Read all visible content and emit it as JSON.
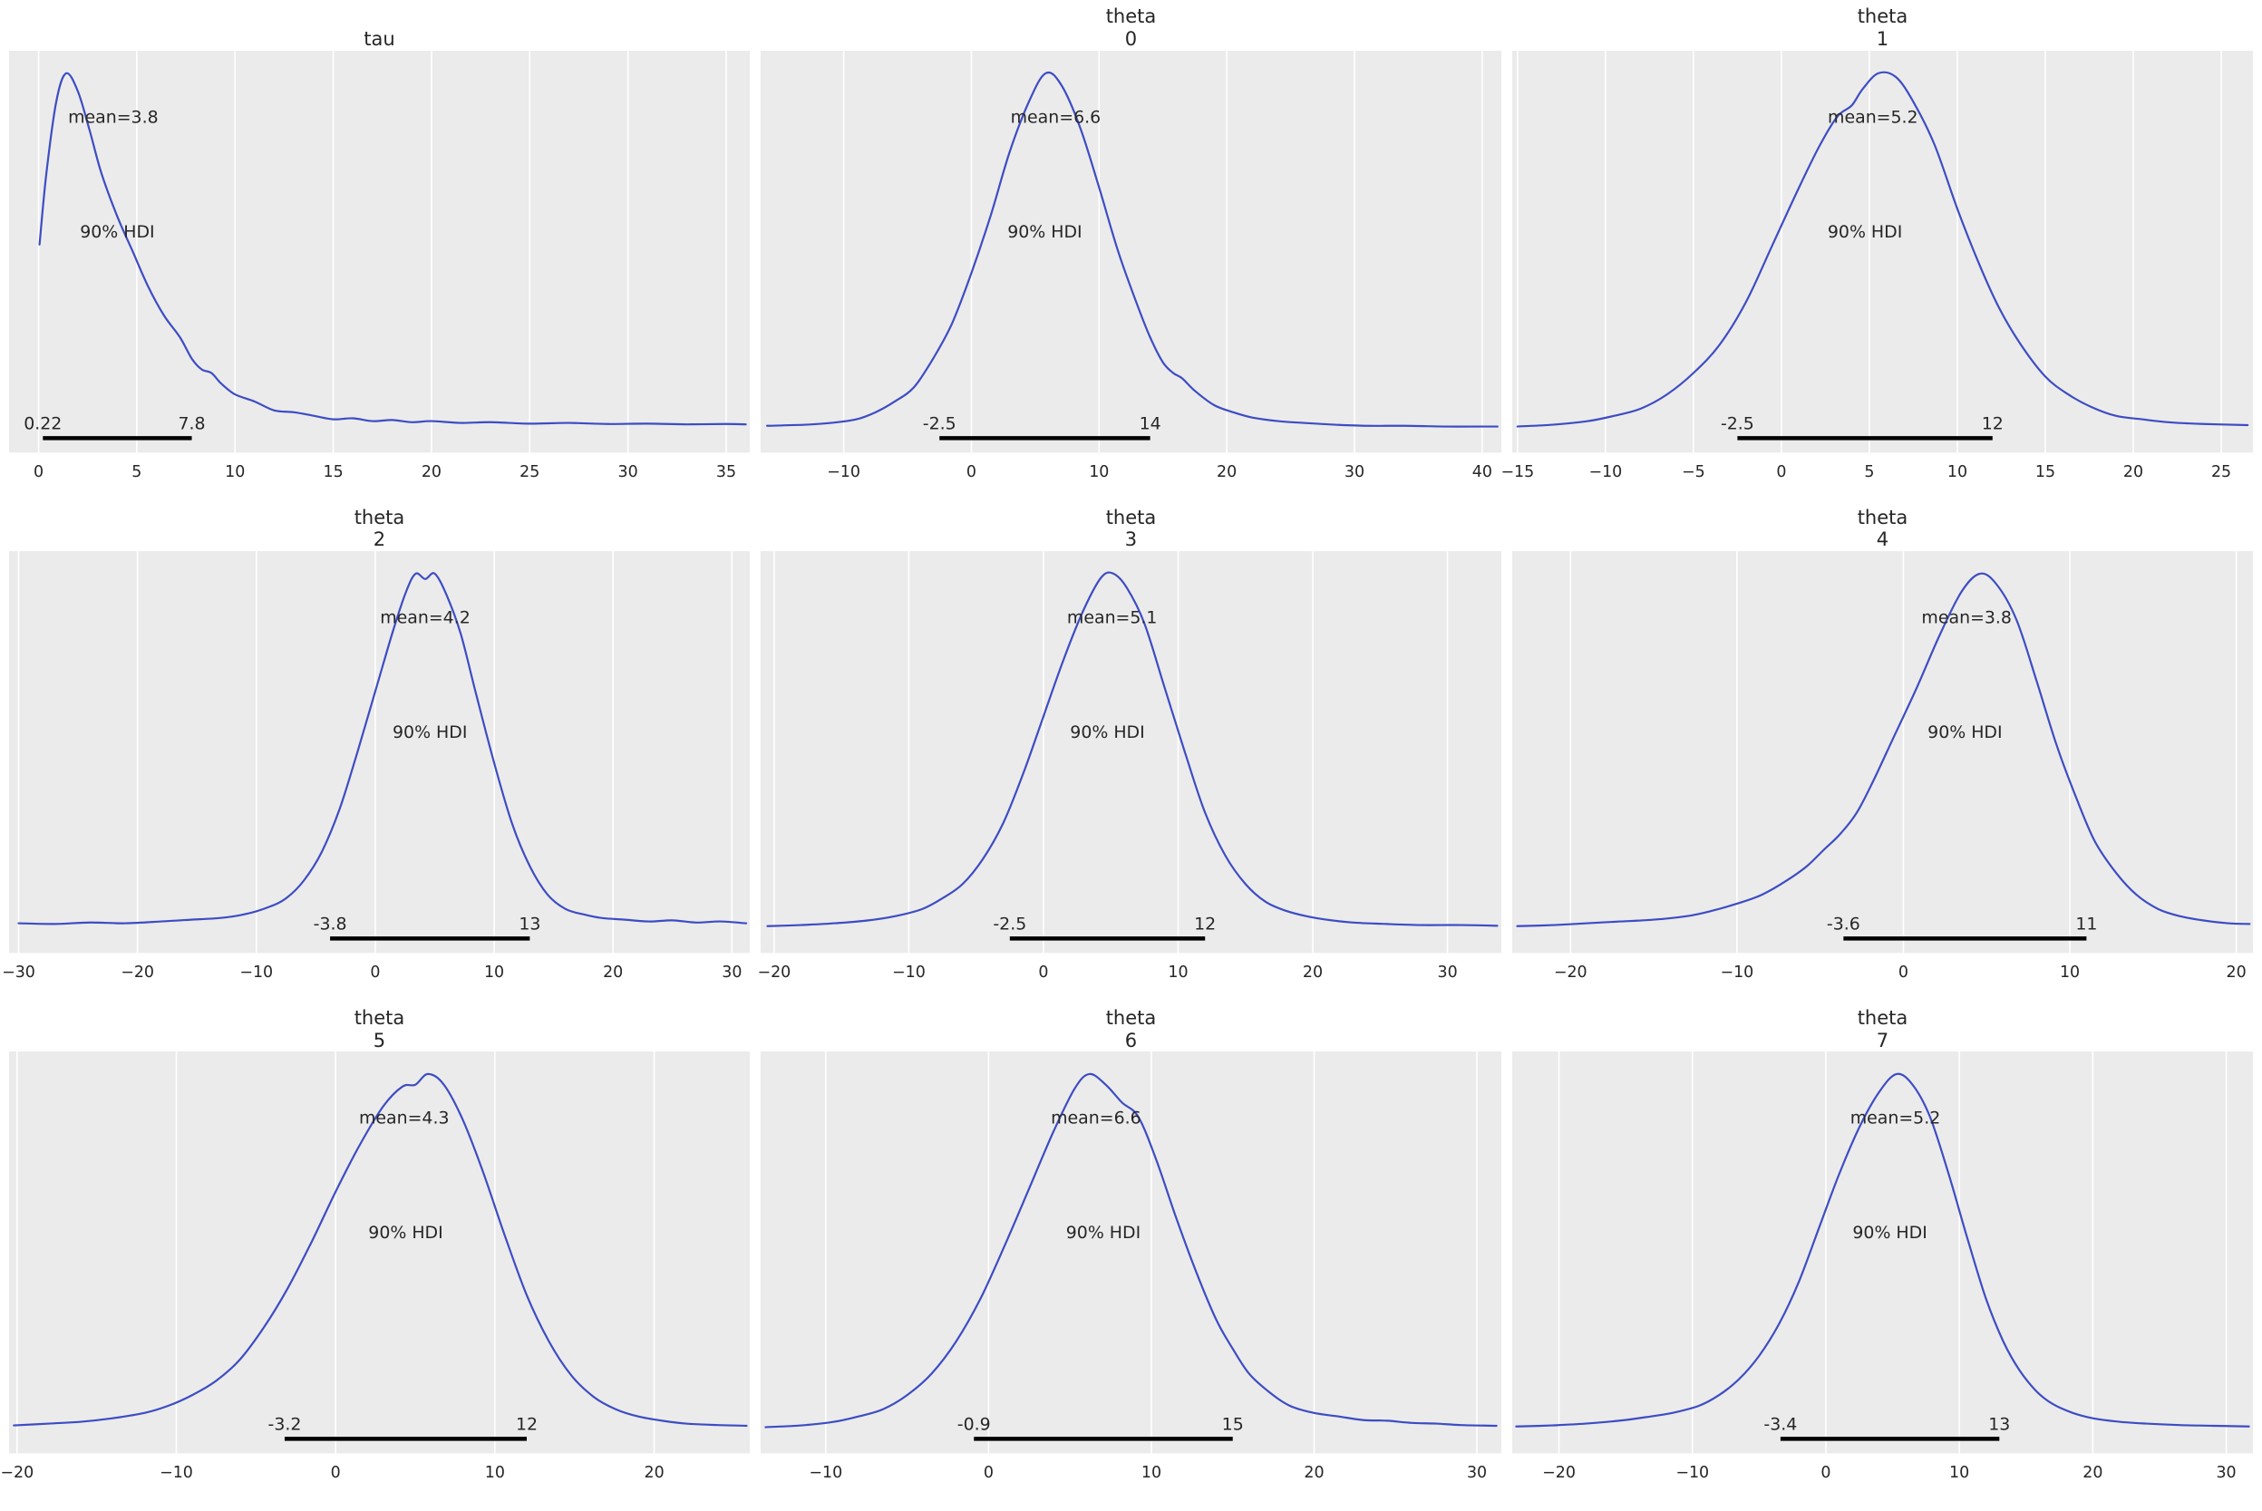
{
  "style": {
    "background": "#ffffff",
    "plot_bg": "#ebebeb",
    "grid_color": "#ffffff",
    "curve_color": "#3d4cc4",
    "hdi_bar_color": "#000000",
    "text_color": "#262626"
  },
  "layout": {
    "rows": 3,
    "cols": 3,
    "grid": "vertical-white-gridlines",
    "legend": false
  },
  "chart_data": [
    {
      "type": "line",
      "variant": "kde-density",
      "title": "tau",
      "mean": 3.8,
      "mean_label": "mean=3.8",
      "hdi_label": "90% HDI",
      "hdi": [
        0.22,
        7.8
      ],
      "hdi_lo_label": "0.22",
      "hdi_hi_label": "7.8",
      "xlim": [
        -1.5,
        36.2
      ],
      "x_ticks": [
        0,
        5,
        10,
        15,
        20,
        25,
        30,
        35
      ],
      "curve": [
        [
          0.05,
          0.52
        ],
        [
          0.4,
          0.72
        ],
        [
          0.9,
          0.92
        ],
        [
          1.4,
          1.0
        ],
        [
          2.0,
          0.95
        ],
        [
          2.6,
          0.84
        ],
        [
          3.2,
          0.72
        ],
        [
          4.0,
          0.6
        ],
        [
          4.8,
          0.5
        ],
        [
          5.6,
          0.4
        ],
        [
          6.4,
          0.32
        ],
        [
          7.2,
          0.26
        ],
        [
          7.8,
          0.2
        ],
        [
          8.3,
          0.17
        ],
        [
          8.8,
          0.16
        ],
        [
          9.3,
          0.13
        ],
        [
          10,
          0.1
        ],
        [
          11,
          0.08
        ],
        [
          12,
          0.055
        ],
        [
          13,
          0.05
        ],
        [
          14,
          0.04
        ],
        [
          15,
          0.03
        ],
        [
          16,
          0.033
        ],
        [
          17,
          0.025
        ],
        [
          18,
          0.028
        ],
        [
          19,
          0.022
        ],
        [
          20,
          0.025
        ],
        [
          21.5,
          0.02
        ],
        [
          23,
          0.022
        ],
        [
          25,
          0.018
        ],
        [
          27,
          0.02
        ],
        [
          29,
          0.017
        ],
        [
          31,
          0.018
        ],
        [
          33,
          0.016
        ],
        [
          35,
          0.017
        ],
        [
          36,
          0.016
        ]
      ]
    },
    {
      "type": "line",
      "variant": "kde-density",
      "title": "theta\n0",
      "mean": 6.6,
      "mean_label": "mean=6.6",
      "hdi_label": "90% HDI",
      "hdi": [
        -2.5,
        14
      ],
      "hdi_lo_label": "-2.5",
      "hdi_hi_label": "14",
      "xlim": [
        -16.5,
        41.5
      ],
      "x_ticks": [
        -10,
        0,
        10,
        20,
        30,
        40
      ],
      "curve": [
        [
          -16,
          0.012
        ],
        [
          -13,
          0.015
        ],
        [
          -11,
          0.02
        ],
        [
          -9,
          0.03
        ],
        [
          -7.5,
          0.05
        ],
        [
          -6,
          0.08
        ],
        [
          -4.5,
          0.12
        ],
        [
          -3,
          0.2
        ],
        [
          -1.5,
          0.3
        ],
        [
          0,
          0.44
        ],
        [
          1.5,
          0.6
        ],
        [
          3,
          0.78
        ],
        [
          4.5,
          0.92
        ],
        [
          5.8,
          1.0
        ],
        [
          7,
          0.97
        ],
        [
          8.5,
          0.85
        ],
        [
          10,
          0.68
        ],
        [
          11.5,
          0.5
        ],
        [
          13,
          0.35
        ],
        [
          14,
          0.26
        ],
        [
          15,
          0.19
        ],
        [
          15.8,
          0.16
        ],
        [
          16.5,
          0.145
        ],
        [
          17.5,
          0.11
        ],
        [
          19,
          0.07
        ],
        [
          20.5,
          0.05
        ],
        [
          22,
          0.035
        ],
        [
          24,
          0.025
        ],
        [
          26,
          0.02
        ],
        [
          28.5,
          0.015
        ],
        [
          31,
          0.012
        ],
        [
          34,
          0.012
        ],
        [
          37,
          0.01
        ],
        [
          40,
          0.01
        ],
        [
          41.2,
          0.01
        ]
      ]
    },
    {
      "type": "line",
      "variant": "kde-density",
      "title": "theta\n1",
      "mean": 5.2,
      "mean_label": "mean=5.2",
      "hdi_label": "90% HDI",
      "hdi": [
        -2.5,
        12
      ],
      "hdi_lo_label": "-2.5",
      "hdi_hi_label": "12",
      "xlim": [
        -15.3,
        26.8
      ],
      "x_ticks": [
        -15,
        -10,
        -5,
        0,
        5,
        10,
        15,
        20,
        25
      ],
      "curve": [
        [
          -15,
          0.01
        ],
        [
          -13,
          0.015
        ],
        [
          -11,
          0.025
        ],
        [
          -9.5,
          0.04
        ],
        [
          -8,
          0.06
        ],
        [
          -6.5,
          0.1
        ],
        [
          -5,
          0.16
        ],
        [
          -3.5,
          0.24
        ],
        [
          -2,
          0.36
        ],
        [
          -0.5,
          0.52
        ],
        [
          1,
          0.68
        ],
        [
          2.2,
          0.8
        ],
        [
          3.2,
          0.88
        ],
        [
          4.0,
          0.91
        ],
        [
          4.6,
          0.955
        ],
        [
          5.5,
          1.0
        ],
        [
          6.5,
          0.99
        ],
        [
          7.5,
          0.92
        ],
        [
          8.7,
          0.8
        ],
        [
          10,
          0.62
        ],
        [
          11.2,
          0.47
        ],
        [
          12.4,
          0.34
        ],
        [
          13.6,
          0.24
        ],
        [
          15,
          0.15
        ],
        [
          16.3,
          0.1
        ],
        [
          17.6,
          0.065
        ],
        [
          19,
          0.04
        ],
        [
          20.5,
          0.03
        ],
        [
          22,
          0.022
        ],
        [
          24,
          0.017
        ],
        [
          26.5,
          0.014
        ]
      ]
    },
    {
      "type": "line",
      "variant": "kde-density",
      "title": "theta\n2",
      "mean": 4.2,
      "mean_label": "mean=4.2",
      "hdi_label": "90% HDI",
      "hdi": [
        -3.8,
        13
      ],
      "hdi_lo_label": "-3.8",
      "hdi_hi_label": "13",
      "xlim": [
        -30.8,
        31.5
      ],
      "x_ticks": [
        -30,
        -20,
        -10,
        0,
        10,
        20,
        30
      ],
      "curve": [
        [
          -30,
          0.02
        ],
        [
          -27,
          0.018
        ],
        [
          -24,
          0.022
        ],
        [
          -21,
          0.02
        ],
        [
          -18,
          0.025
        ],
        [
          -15.5,
          0.03
        ],
        [
          -13,
          0.035
        ],
        [
          -11,
          0.045
        ],
        [
          -9,
          0.065
        ],
        [
          -7.5,
          0.09
        ],
        [
          -6,
          0.14
        ],
        [
          -4.5,
          0.22
        ],
        [
          -3,
          0.34
        ],
        [
          -1.5,
          0.5
        ],
        [
          0,
          0.67
        ],
        [
          1.5,
          0.84
        ],
        [
          2.6,
          0.95
        ],
        [
          3.4,
          1.0
        ],
        [
          4.2,
          0.985
        ],
        [
          5,
          1.0
        ],
        [
          6,
          0.94
        ],
        [
          7.2,
          0.83
        ],
        [
          8.5,
          0.66
        ],
        [
          10,
          0.47
        ],
        [
          11.5,
          0.3
        ],
        [
          13,
          0.18
        ],
        [
          14.5,
          0.1
        ],
        [
          16,
          0.06
        ],
        [
          17.5,
          0.045
        ],
        [
          19,
          0.035
        ],
        [
          21,
          0.03
        ],
        [
          23,
          0.025
        ],
        [
          25,
          0.028
        ],
        [
          27,
          0.022
        ],
        [
          29,
          0.025
        ],
        [
          31.2,
          0.02
        ]
      ]
    },
    {
      "type": "line",
      "variant": "kde-density",
      "title": "theta\n3",
      "mean": 5.1,
      "mean_label": "mean=5.1",
      "hdi_label": "90% HDI",
      "hdi": [
        -2.5,
        12
      ],
      "hdi_lo_label": "-2.5",
      "hdi_hi_label": "12",
      "xlim": [
        -21,
        34
      ],
      "x_ticks": [
        -20,
        -10,
        0,
        10,
        20,
        30
      ],
      "curve": [
        [
          -20.5,
          0.012
        ],
        [
          -18,
          0.015
        ],
        [
          -15.5,
          0.02
        ],
        [
          -13,
          0.028
        ],
        [
          -11,
          0.04
        ],
        [
          -9,
          0.06
        ],
        [
          -7.5,
          0.09
        ],
        [
          -6,
          0.13
        ],
        [
          -4.5,
          0.2
        ],
        [
          -3,
          0.3
        ],
        [
          -1.5,
          0.44
        ],
        [
          0,
          0.6
        ],
        [
          1.5,
          0.76
        ],
        [
          3,
          0.9
        ],
        [
          4.3,
          0.99
        ],
        [
          5.2,
          1.0
        ],
        [
          6.2,
          0.96
        ],
        [
          7.5,
          0.86
        ],
        [
          9,
          0.68
        ],
        [
          10.5,
          0.5
        ],
        [
          12,
          0.33
        ],
        [
          13.5,
          0.21
        ],
        [
          15,
          0.13
        ],
        [
          16.5,
          0.08
        ],
        [
          18,
          0.055
        ],
        [
          19.5,
          0.04
        ],
        [
          21,
          0.03
        ],
        [
          23,
          0.022
        ],
        [
          25.5,
          0.018
        ],
        [
          28,
          0.015
        ],
        [
          31,
          0.015
        ],
        [
          33.7,
          0.013
        ]
      ]
    },
    {
      "type": "line",
      "variant": "kde-density",
      "title": "theta\n4",
      "mean": 3.8,
      "mean_label": "mean=3.8",
      "hdi_label": "90% HDI",
      "hdi": [
        -3.6,
        11
      ],
      "hdi_lo_label": "-3.6",
      "hdi_hi_label": "11",
      "xlim": [
        -23.5,
        21
      ],
      "x_ticks": [
        -20,
        -10,
        0,
        10,
        20
      ],
      "curve": [
        [
          -23.2,
          0.012
        ],
        [
          -21,
          0.015
        ],
        [
          -19,
          0.02
        ],
        [
          -17,
          0.025
        ],
        [
          -15,
          0.03
        ],
        [
          -13,
          0.04
        ],
        [
          -11.5,
          0.055
        ],
        [
          -10,
          0.075
        ],
        [
          -8.5,
          0.1
        ],
        [
          -7,
          0.14
        ],
        [
          -5.8,
          0.18
        ],
        [
          -4.8,
          0.225
        ],
        [
          -3.8,
          0.27
        ],
        [
          -2.8,
          0.33
        ],
        [
          -1.8,
          0.42
        ],
        [
          -0.6,
          0.54
        ],
        [
          0.8,
          0.68
        ],
        [
          2.2,
          0.83
        ],
        [
          3.5,
          0.95
        ],
        [
          4.6,
          1.0
        ],
        [
          5.6,
          0.97
        ],
        [
          6.8,
          0.87
        ],
        [
          8,
          0.7
        ],
        [
          9.2,
          0.52
        ],
        [
          10.4,
          0.37
        ],
        [
          11.5,
          0.25
        ],
        [
          12.8,
          0.16
        ],
        [
          14,
          0.1
        ],
        [
          15.3,
          0.06
        ],
        [
          16.6,
          0.04
        ],
        [
          18,
          0.028
        ],
        [
          19.5,
          0.02
        ],
        [
          20.8,
          0.018
        ]
      ]
    },
    {
      "type": "line",
      "variant": "kde-density",
      "title": "theta\n5",
      "mean": 4.3,
      "mean_label": "mean=4.3",
      "hdi_label": "90% HDI",
      "hdi": [
        -3.2,
        12
      ],
      "hdi_lo_label": "-3.2",
      "hdi_hi_label": "12",
      "xlim": [
        -20.5,
        26
      ],
      "x_ticks": [
        -20,
        -10,
        0,
        10,
        20
      ],
      "curve": [
        [
          -20.2,
          0.015
        ],
        [
          -18,
          0.02
        ],
        [
          -16,
          0.025
        ],
        [
          -14,
          0.035
        ],
        [
          -12,
          0.05
        ],
        [
          -10.5,
          0.07
        ],
        [
          -9,
          0.1
        ],
        [
          -7.5,
          0.14
        ],
        [
          -6,
          0.2
        ],
        [
          -4.5,
          0.29
        ],
        [
          -3,
          0.4
        ],
        [
          -1.5,
          0.53
        ],
        [
          0,
          0.67
        ],
        [
          1.5,
          0.8
        ],
        [
          3,
          0.91
        ],
        [
          4.2,
          0.965
        ],
        [
          5,
          0.97
        ],
        [
          5.8,
          1.0
        ],
        [
          6.8,
          0.97
        ],
        [
          8,
          0.87
        ],
        [
          9.3,
          0.72
        ],
        [
          10.6,
          0.55
        ],
        [
          12,
          0.38
        ],
        [
          13.4,
          0.25
        ],
        [
          14.8,
          0.155
        ],
        [
          16.2,
          0.095
        ],
        [
          17.6,
          0.06
        ],
        [
          19,
          0.04
        ],
        [
          20.5,
          0.028
        ],
        [
          22,
          0.02
        ],
        [
          24,
          0.016
        ],
        [
          25.8,
          0.014
        ]
      ]
    },
    {
      "type": "line",
      "variant": "kde-density",
      "title": "theta\n6",
      "mean": 6.6,
      "mean_label": "mean=6.6",
      "hdi_label": "90% HDI",
      "hdi": [
        -0.9,
        15
      ],
      "hdi_lo_label": "-0.9",
      "hdi_hi_label": "15",
      "xlim": [
        -14,
        31.5
      ],
      "x_ticks": [
        -10,
        0,
        10,
        20,
        30
      ],
      "curve": [
        [
          -13.7,
          0.01
        ],
        [
          -11.5,
          0.015
        ],
        [
          -9.5,
          0.025
        ],
        [
          -8,
          0.04
        ],
        [
          -6.5,
          0.06
        ],
        [
          -5,
          0.1
        ],
        [
          -3.5,
          0.16
        ],
        [
          -2,
          0.25
        ],
        [
          -0.5,
          0.37
        ],
        [
          1,
          0.52
        ],
        [
          2.5,
          0.68
        ],
        [
          4,
          0.84
        ],
        [
          5.3,
          0.96
        ],
        [
          6.2,
          1.0
        ],
        [
          7.2,
          0.97
        ],
        [
          8.2,
          0.92
        ],
        [
          9.2,
          0.88
        ],
        [
          10.3,
          0.76
        ],
        [
          11.5,
          0.6
        ],
        [
          12.8,
          0.44
        ],
        [
          14,
          0.31
        ],
        [
          15,
          0.23
        ],
        [
          16,
          0.16
        ],
        [
          17.2,
          0.11
        ],
        [
          18.5,
          0.07
        ],
        [
          20,
          0.05
        ],
        [
          21.5,
          0.04
        ],
        [
          23,
          0.03
        ],
        [
          24.5,
          0.028
        ],
        [
          26,
          0.022
        ],
        [
          27.5,
          0.02
        ],
        [
          29,
          0.016
        ],
        [
          31.2,
          0.014
        ]
      ]
    },
    {
      "type": "line",
      "variant": "kde-density",
      "title": "theta\n7",
      "mean": 5.2,
      "mean_label": "mean=5.2",
      "hdi_label": "90% HDI",
      "hdi": [
        -3.4,
        13
      ],
      "hdi_lo_label": "-3.4",
      "hdi_hi_label": "13",
      "xlim": [
        -23.5,
        32
      ],
      "x_ticks": [
        -20,
        -10,
        0,
        10,
        20,
        30
      ],
      "curve": [
        [
          -23.2,
          0.012
        ],
        [
          -20.5,
          0.015
        ],
        [
          -18,
          0.02
        ],
        [
          -15.5,
          0.028
        ],
        [
          -13.5,
          0.038
        ],
        [
          -11.5,
          0.05
        ],
        [
          -9.5,
          0.07
        ],
        [
          -8,
          0.1
        ],
        [
          -6.5,
          0.145
        ],
        [
          -5,
          0.21
        ],
        [
          -3.5,
          0.3
        ],
        [
          -2,
          0.42
        ],
        [
          -0.5,
          0.57
        ],
        [
          1,
          0.72
        ],
        [
          2.5,
          0.85
        ],
        [
          4,
          0.95
        ],
        [
          5.3,
          1.0
        ],
        [
          6.5,
          0.97
        ],
        [
          7.8,
          0.88
        ],
        [
          9.2,
          0.72
        ],
        [
          10.6,
          0.54
        ],
        [
          12,
          0.37
        ],
        [
          13.3,
          0.25
        ],
        [
          14.5,
          0.17
        ],
        [
          15.8,
          0.11
        ],
        [
          17,
          0.075
        ],
        [
          18.5,
          0.05
        ],
        [
          20,
          0.035
        ],
        [
          22,
          0.025
        ],
        [
          24,
          0.02
        ],
        [
          26.5,
          0.016
        ],
        [
          29,
          0.014
        ],
        [
          31.7,
          0.012
        ]
      ]
    }
  ]
}
